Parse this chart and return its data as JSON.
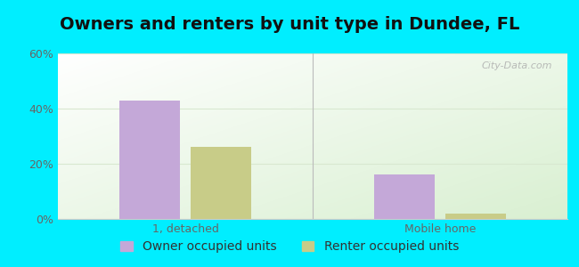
{
  "title": "Owners and renters by unit type in Dundee, FL",
  "categories": [
    "1, detached",
    "Mobile home"
  ],
  "series": [
    {
      "label": "Owner occupied units",
      "color": "#c4a8d8",
      "values": [
        43,
        16
      ]
    },
    {
      "label": "Renter occupied units",
      "color": "#c8cc88",
      "values": [
        26,
        2
      ]
    }
  ],
  "ylim": [
    0,
    60
  ],
  "yticks": [
    0,
    20,
    40,
    60
  ],
  "ytick_labels": [
    "0%",
    "20%",
    "40%",
    "60%"
  ],
  "bar_width": 0.12,
  "background_outer": "#00eeff",
  "grid_color": "#d8e8d0",
  "title_fontsize": 14,
  "tick_fontsize": 9,
  "legend_fontsize": 10,
  "watermark_text": "City-Data.com",
  "group_centers": [
    0.25,
    0.75
  ]
}
